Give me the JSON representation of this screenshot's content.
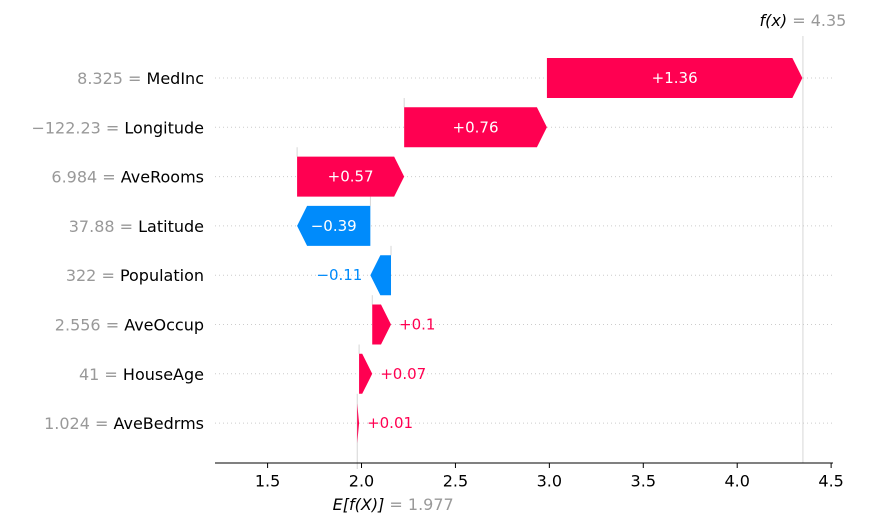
{
  "chart_data": {
    "type": "waterfall",
    "x_ticks": [
      1.5,
      2.0,
      2.5,
      3.0,
      3.5,
      4.0,
      4.5
    ],
    "x_tick_labels": [
      "1.5",
      "2.0",
      "2.5",
      "3.0",
      "3.5",
      "4.0",
      "4.5"
    ],
    "xlim": [
      1.22,
      4.51
    ],
    "base_value": 1.977,
    "base_label": "E[f(X)]",
    "base_value_text": "= 1.977",
    "output_value": 4.35,
    "output_label": "f(x)",
    "output_value_text": "= 4.35",
    "features": [
      {
        "name": "MedInc",
        "value_text": "8.325 =",
        "shap": 1.36,
        "label": "+1.36"
      },
      {
        "name": "Longitude",
        "value_text": "−122.23 =",
        "shap": 0.76,
        "label": "+0.76"
      },
      {
        "name": "AveRooms",
        "value_text": "6.984 =",
        "shap": 0.57,
        "label": "+0.57"
      },
      {
        "name": "Latitude",
        "value_text": "37.88 =",
        "shap": -0.39,
        "label": "−0.39"
      },
      {
        "name": "Population",
        "value_text": "322 =",
        "shap": -0.11,
        "label": "−0.11"
      },
      {
        "name": "AveOccup",
        "value_text": "2.556 =",
        "shap": 0.1,
        "label": "+0.1"
      },
      {
        "name": "HouseAge",
        "value_text": "41 =",
        "shap": 0.07,
        "label": "+0.07"
      },
      {
        "name": "AveBedrms",
        "value_text": "1.024 =",
        "shap": 0.01,
        "label": "+0.01"
      }
    ],
    "colors": {
      "positive": "#ff0051",
      "negative": "#008bfb",
      "muted_text": "#999999",
      "grid": "#cccccc"
    }
  }
}
